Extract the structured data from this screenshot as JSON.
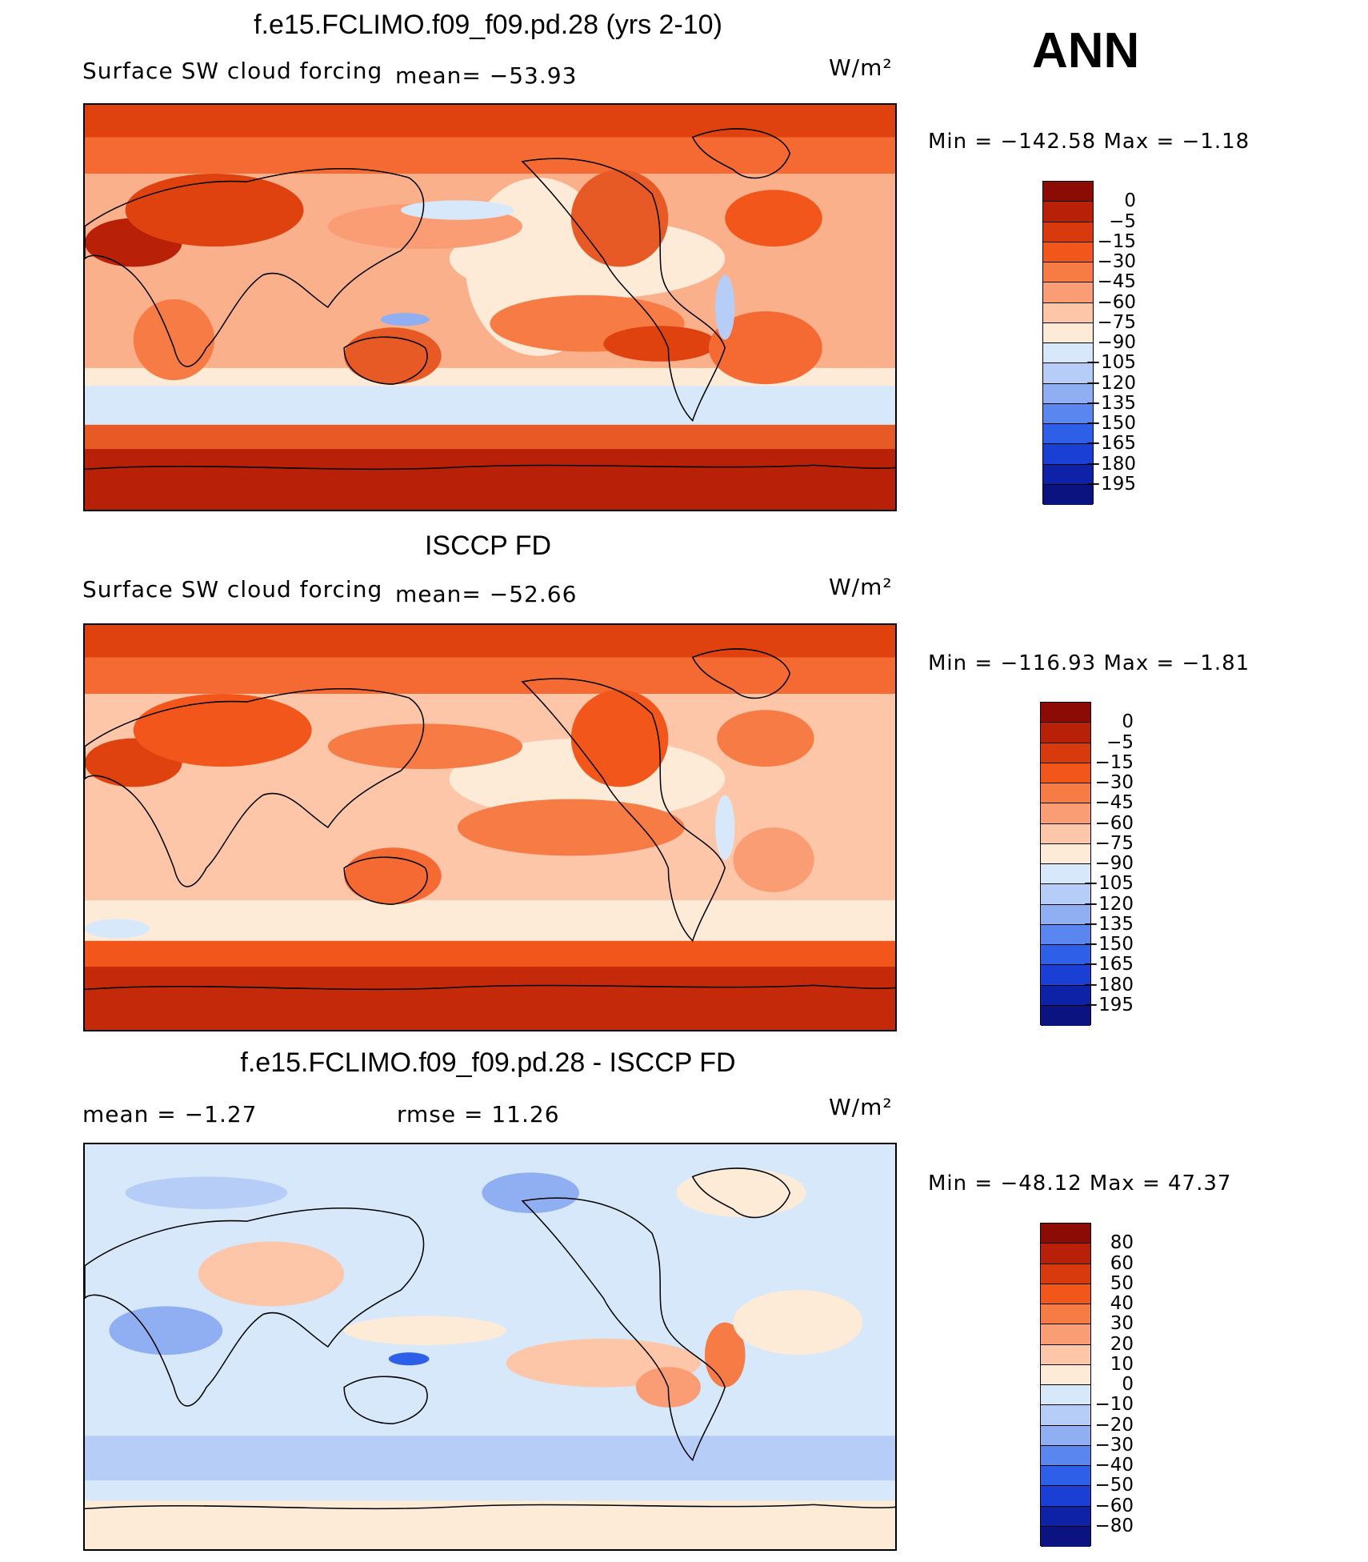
{
  "season": "ANN",
  "panels": [
    {
      "title": "f.e15.FCLIMO.f09_f09.pd.28 (yrs 2-10)",
      "left_label": "Surface SW cloud forcing",
      "center_label": "mean= −53.93",
      "units": "W/m²",
      "range_text": "Min  =  −142.58  Max  =    −1.18",
      "colorbar": {
        "labels": [
          "0",
          "−5",
          "−15",
          "−30",
          "−45",
          "−60",
          "−75",
          "−90",
          "−105",
          "−120",
          "−135",
          "−150",
          "−165",
          "−180",
          "−195"
        ],
        "colors": [
          "#8c0c05",
          "#b82008",
          "#d93a0d",
          "#f2561b",
          "#f77b44",
          "#fb9d74",
          "#fdc6a8",
          "#fdebd8",
          "#d6e8fa",
          "#b5cdf7",
          "#90aff3",
          "#5a86ef",
          "#2d5fe8",
          "#1a3fd5",
          "#0d22a6",
          "#0a1380"
        ]
      }
    },
    {
      "title": "ISCCP FD",
      "left_label": "Surface SW cloud forcing",
      "center_label": "mean= −52.66",
      "units": "W/m²",
      "range_text": "Min  =  −116.93  Max  =    −1.81",
      "colorbar": {
        "labels": [
          "0",
          "−5",
          "−15",
          "−30",
          "−45",
          "−60",
          "−75",
          "−90",
          "−105",
          "−120",
          "−135",
          "−150",
          "−165",
          "−180",
          "−195"
        ],
        "colors": [
          "#8c0c05",
          "#b82008",
          "#d93a0d",
          "#f2561b",
          "#f77b44",
          "#fb9d74",
          "#fdc6a8",
          "#fdebd8",
          "#d6e8fa",
          "#b5cdf7",
          "#90aff3",
          "#5a86ef",
          "#2d5fe8",
          "#1a3fd5",
          "#0d22a6",
          "#0a1380"
        ]
      }
    },
    {
      "title": "f.e15.FCLIMO.f09_f09.pd.28 - ISCCP FD",
      "left_label": "mean  =    −1.27",
      "center_label": "rmse  =    11.26",
      "units": "W/m²",
      "range_text": "Min  =  −48.12  Max  =    47.37",
      "colorbar": {
        "labels": [
          "80",
          "60",
          "50",
          "40",
          "30",
          "20",
          "10",
          "0",
          "−10",
          "−20",
          "−30",
          "−40",
          "−50",
          "−60",
          "−80"
        ],
        "colors": [
          "#8c0c05",
          "#b82008",
          "#d93a0d",
          "#f2561b",
          "#f77b44",
          "#fb9d74",
          "#fdc6a8",
          "#fdebd8",
          "#d6e8fa",
          "#b5cdf7",
          "#90aff3",
          "#5a86ef",
          "#2d5fe8",
          "#1a3fd5",
          "#0d22a6",
          "#0a1380"
        ]
      }
    }
  ]
}
